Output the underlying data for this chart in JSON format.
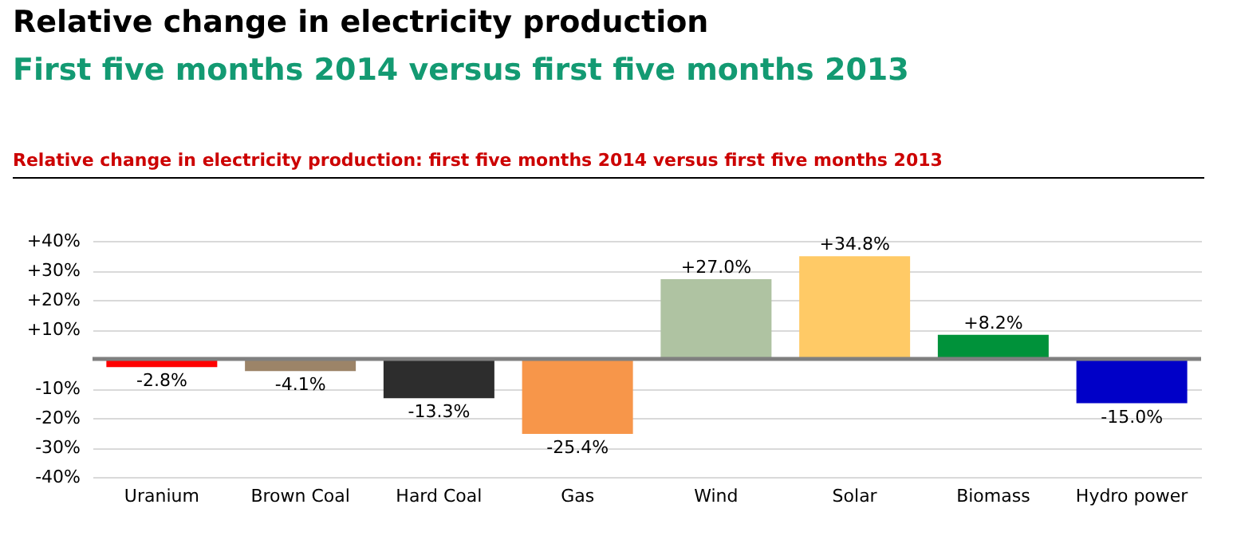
{
  "chart_data": {
    "type": "bar",
    "title": "Relative change in electricity production",
    "subtitle": "First five months 2014 versus first five months 2013",
    "annotations": [
      "Relative change in electricity production: first five months 2014 versus first five months 2013"
    ],
    "categories": [
      "Uranium",
      "Brown Coal",
      "Hard Coal",
      "Gas",
      "Wind",
      "Solar",
      "Biomass",
      "Hydro power"
    ],
    "values": [
      -2.8,
      -4.1,
      -13.3,
      -25.4,
      27.0,
      34.8,
      8.2,
      -15.0
    ],
    "colors": [
      "#ff0000",
      "#9c8468",
      "#2d2d2d",
      "#f7964a",
      "#afc3a2",
      "#ffca66",
      "#00923a",
      "#0000c8"
    ],
    "value_labels": [
      "-2.8%",
      "-4.1%",
      "-13.3%",
      "-25.4%",
      "+27.0%",
      "+34.8%",
      "+8.2%",
      "-15.0%"
    ],
    "ylim": [
      -40,
      40
    ],
    "yticks": [
      {
        "value": -40,
        "label": "-40%"
      },
      {
        "value": -30,
        "label": "-30%"
      },
      {
        "value": -20,
        "label": "-20%"
      },
      {
        "value": -10,
        "label": "-10%"
      },
      {
        "value": 10,
        "label": "+10%"
      },
      {
        "value": 20,
        "label": "+20%"
      },
      {
        "value": 30,
        "label": "+30%"
      },
      {
        "value": 40,
        "label": "+40%"
      }
    ],
    "ref_lines": [
      {
        "axis": "y",
        "value": 0,
        "color": "#808080"
      }
    ],
    "grid": true
  }
}
